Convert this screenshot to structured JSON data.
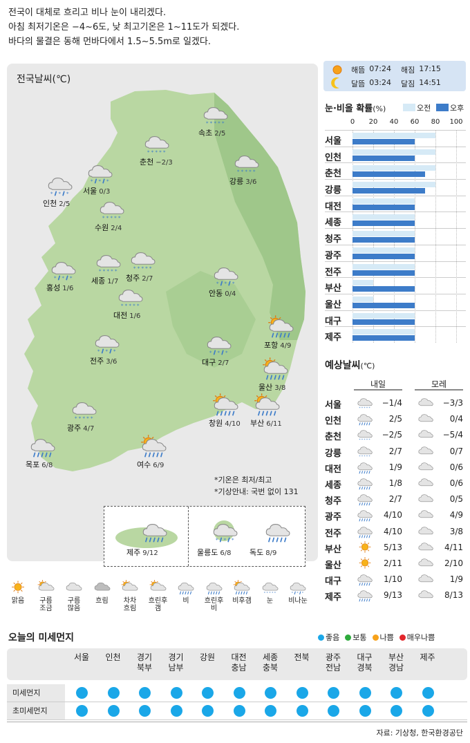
{
  "summary": [
    "전국이 대체로 흐리고 비나 눈이 내리겠다.",
    "아침 최저기온은 −4~6도, 낮 최고기온은 1~11도가 되겠다.",
    "바다의 물결은 동해 먼바다에서 1.5~5.5m로 일겠다."
  ],
  "map": {
    "title": "전국날씨(℃)",
    "cities": [
      {
        "name": "속초",
        "temp": "2/5",
        "icon": "snow-icon"
      },
      {
        "name": "춘천",
        "temp": "−2/3",
        "icon": "snow-icon"
      },
      {
        "name": "강릉",
        "temp": "3/6",
        "icon": "snow-icon"
      },
      {
        "name": "서울",
        "temp": "0/3",
        "icon": "rain-snow-icon"
      },
      {
        "name": "인천",
        "temp": "2/5",
        "icon": "rain-snow-icon"
      },
      {
        "name": "수원",
        "temp": "2/4",
        "icon": "snow-icon"
      },
      {
        "name": "홍성",
        "temp": "1/6",
        "icon": "rain-snow-icon"
      },
      {
        "name": "세종",
        "temp": "1/7",
        "icon": "snow-icon"
      },
      {
        "name": "청주",
        "temp": "2/7",
        "icon": "snow-icon"
      },
      {
        "name": "안동",
        "temp": "0/4",
        "icon": "rain-snow-icon"
      },
      {
        "name": "대전",
        "temp": "1/6",
        "icon": "snow-icon"
      },
      {
        "name": "포항",
        "temp": "4/9",
        "icon": "sun-rain-icon"
      },
      {
        "name": "전주",
        "temp": "3/6",
        "icon": "rain-snow-icon"
      },
      {
        "name": "대구",
        "temp": "2/7",
        "icon": "rain-snow-icon"
      },
      {
        "name": "울산",
        "temp": "3/8",
        "icon": "sun-rain-icon"
      },
      {
        "name": "광주",
        "temp": "4/7",
        "icon": "snow-icon"
      },
      {
        "name": "창원",
        "temp": "4/10",
        "icon": "sun-rain-icon"
      },
      {
        "name": "부산",
        "temp": "6/11",
        "icon": "sun-rain-icon"
      },
      {
        "name": "목포",
        "temp": "6/8",
        "icon": "rain-icon"
      },
      {
        "name": "여수",
        "temp": "6/9",
        "icon": "sun-rain-icon"
      }
    ],
    "notes": [
      "*기온은 최저/최고",
      "*기상안내: 국번 없이 131"
    ],
    "islands": [
      {
        "name": "제주",
        "temp": "9/12",
        "icon": "rain-icon"
      },
      {
        "name": "울릉도",
        "temp": "6/8",
        "icon": "rain-snow-icon"
      },
      {
        "name": "독도",
        "temp": "8/9",
        "icon": "rain-icon"
      }
    ]
  },
  "sun_moon": {
    "sunrise_label": "해뜸",
    "sunrise": "07:24",
    "sunset_label": "해짐",
    "sunset": "17:15",
    "moonrise_label": "달뜸",
    "moonrise": "03:24",
    "moonset_label": "달짐",
    "moonset": "14:51"
  },
  "chart_data": {
    "type": "bar",
    "title": "눈·비올 확률",
    "title_unit": "(%)",
    "xlim": [
      0,
      100
    ],
    "ticks": [
      "0",
      "20",
      "40",
      "60",
      "80",
      "100"
    ],
    "categories": [
      "서울",
      "인천",
      "춘천",
      "강릉",
      "대전",
      "세종",
      "청주",
      "광주",
      "전주",
      "부산",
      "울산",
      "대구",
      "제주"
    ],
    "series": [
      {
        "name": "오전",
        "color": "#d6eaf6",
        "values": [
          80,
          80,
          80,
          80,
          60,
          60,
          60,
          60,
          60,
          20,
          20,
          60,
          60
        ]
      },
      {
        "name": "오후",
        "color": "#3d7cc9",
        "values": [
          60,
          60,
          70,
          70,
          60,
          60,
          60,
          60,
          60,
          60,
          60,
          60,
          60
        ]
      }
    ]
  },
  "forecast": {
    "title": "예상날씨",
    "unit": "(℃)",
    "day1_label": "내일",
    "day2_label": "모레",
    "rows": [
      {
        "city": "서울",
        "d1": "−1/4",
        "d2": "−3/3",
        "i1": "snow-icon",
        "i2": "cloud-icon"
      },
      {
        "city": "인천",
        "d1": "2/5",
        "d2": "0/4",
        "i1": "rain-icon",
        "i2": "cloud-icon"
      },
      {
        "city": "춘천",
        "d1": "−2/5",
        "d2": "−5/4",
        "i1": "snow-icon",
        "i2": "cloud-icon"
      },
      {
        "city": "강릉",
        "d1": "2/7",
        "d2": "0/7",
        "i1": "snow-icon",
        "i2": "cloud-icon"
      },
      {
        "city": "대전",
        "d1": "1/9",
        "d2": "0/6",
        "i1": "rain-icon",
        "i2": "cloud-icon"
      },
      {
        "city": "세종",
        "d1": "1/8",
        "d2": "0/6",
        "i1": "rain-icon",
        "i2": "cloud-icon"
      },
      {
        "city": "청주",
        "d1": "2/7",
        "d2": "0/5",
        "i1": "rain-icon",
        "i2": "cloud-icon"
      },
      {
        "city": "광주",
        "d1": "4/10",
        "d2": "4/9",
        "i1": "rain-icon",
        "i2": "cloud-icon"
      },
      {
        "city": "전주",
        "d1": "4/10",
        "d2": "3/8",
        "i1": "rain-icon",
        "i2": "cloud-icon"
      },
      {
        "city": "부산",
        "d1": "5/13",
        "d2": "4/11",
        "i1": "sun-icon",
        "i2": "cloud-icon"
      },
      {
        "city": "울산",
        "d1": "2/11",
        "d2": "2/10",
        "i1": "sun-icon",
        "i2": "cloud-icon"
      },
      {
        "city": "대구",
        "d1": "1/10",
        "d2": "1/9",
        "i1": "rain-icon",
        "i2": "cloud-icon"
      },
      {
        "city": "제주",
        "d1": "9/13",
        "d2": "8/13",
        "i1": "rain-icon",
        "i2": "cloud-icon"
      }
    ]
  },
  "icon_legend": [
    {
      "label": "맑음",
      "icon": "sun-icon"
    },
    {
      "label": "구름\n조금",
      "icon": "sun-cloud-icon"
    },
    {
      "label": "구름\n많음",
      "icon": "cloud-icon"
    },
    {
      "label": "흐림",
      "icon": "overcast-icon"
    },
    {
      "label": "차차\n흐림",
      "icon": "gradually-cloudy-icon"
    },
    {
      "label": "흐린후\n갬",
      "icon": "clearing-icon"
    },
    {
      "label": "비",
      "icon": "rain-icon"
    },
    {
      "label": "흐린후\n비",
      "icon": "cloud-then-rain-icon"
    },
    {
      "label": "비후갬",
      "icon": "rain-then-clear-icon"
    },
    {
      "label": "눈",
      "icon": "snow-icon"
    },
    {
      "label": "비나눈",
      "icon": "rain-snow-icon"
    }
  ],
  "dust": {
    "title": "오늘의 미세먼지",
    "legend": [
      {
        "label": "좋음",
        "color": "#1aa7e8"
      },
      {
        "label": "보통",
        "color": "#2eaa3c"
      },
      {
        "label": "나쁨",
        "color": "#f7a21b"
      },
      {
        "label": "매우나쁨",
        "color": "#e3262b"
      }
    ],
    "regions": [
      "서울",
      "인천",
      "경기\n북부",
      "경기\n남부",
      "강원",
      "대전\n충남",
      "세종\n충북",
      "전북",
      "광주\n전남",
      "대구\n경북",
      "부산\n경남",
      "제주"
    ],
    "rows": [
      {
        "label": "미세먼지",
        "levels": [
          "좋음",
          "좋음",
          "좋음",
          "좋음",
          "좋음",
          "좋음",
          "좋음",
          "좋음",
          "좋음",
          "좋음",
          "좋음",
          "좋음"
        ]
      },
      {
        "label": "초미세먼지",
        "levels": [
          "좋음",
          "좋음",
          "좋음",
          "좋음",
          "좋음",
          "좋음",
          "좋음",
          "좋음",
          "좋음",
          "좋음",
          "좋음",
          "좋음"
        ]
      }
    ]
  },
  "source": "자료: 기상청, 한국환경공단"
}
